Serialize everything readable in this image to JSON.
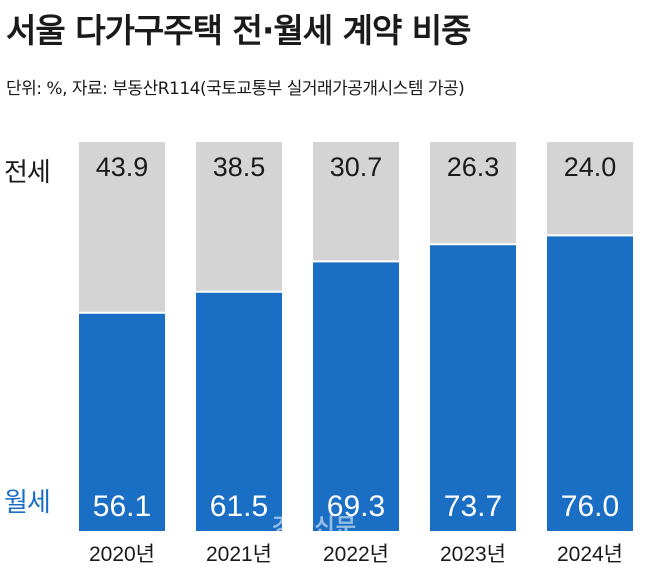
{
  "title": "서울 다가구주택 전·월세 계약 비중",
  "subtitle": "단위: %, 자료: 부동산R114(국토교통부 실거래가공개시스템 가공)",
  "row_labels": {
    "jeonse": "전세",
    "wolse": "월세"
  },
  "watermark": "경향신문",
  "colors": {
    "jeonse": "#d4d4d4",
    "wolse": "#1a6fc4",
    "wolse_text": "#ffffff",
    "jeonse_text": "#1a1a1a"
  },
  "chart_data": {
    "type": "bar",
    "stacked": true,
    "title": "서울 다가구주택 전·월세 계약 비중",
    "categories": [
      "2020년",
      "2021년",
      "2022년",
      "2023년",
      "2024년"
    ],
    "series": [
      {
        "name": "월세",
        "values": [
          56.1,
          61.5,
          69.3,
          73.7,
          76.0
        ]
      },
      {
        "name": "전세",
        "values": [
          43.9,
          38.5,
          30.7,
          26.3,
          24.0
        ]
      }
    ],
    "ylim": [
      0,
      100
    ],
    "grid": false
  }
}
